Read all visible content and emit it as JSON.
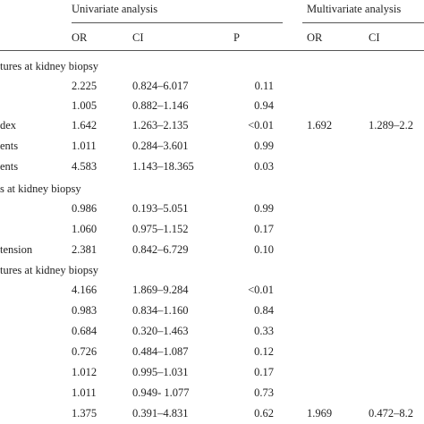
{
  "header": {
    "univariate": "Univariate analysis",
    "multivariate": "Multivariate analysis",
    "cols": {
      "or": "OR",
      "ci": "CI",
      "p": "P",
      "or2": "OR",
      "ci2": "CI"
    }
  },
  "sections": [
    "tures at kidney biopsy",
    "s at kidney biopsy",
    "tures at kidney biopsy"
  ],
  "rows": [
    {
      "label": "",
      "or": "2.225",
      "ci": "0.824–6.017",
      "p": "0.11",
      "mor": "",
      "mci": ""
    },
    {
      "label": "",
      "or": "1.005",
      "ci": "0.882–1.146",
      "p": "0.94",
      "mor": "",
      "mci": ""
    },
    {
      "label": "dex",
      "or": "1.642",
      "ci": "1.263–2.135",
      "p": "<0.01",
      "mor": "1.692",
      "mci": "1.289–2.2"
    },
    {
      "label": "ents",
      "or": "1.011",
      "ci": "0.284–3.601",
      "p": "0.99",
      "mor": "",
      "mci": ""
    },
    {
      "label": "ents",
      "or": "4.583",
      "ci": "1.143–18.365",
      "p": "0.03",
      "mor": "",
      "mci": ""
    },
    {
      "label": "",
      "or": "0.986",
      "ci": "0.193–5.051",
      "p": "0.99",
      "mor": "",
      "mci": ""
    },
    {
      "label": "",
      "or": "1.060",
      "ci": "0.975–1.152",
      "p": "0.17",
      "mor": "",
      "mci": ""
    },
    {
      "label": "tension",
      "or": "2.381",
      "ci": "0.842–6.729",
      "p": "0.10",
      "mor": "",
      "mci": ""
    },
    {
      "label": "",
      "or": "4.166",
      "ci": "1.869–9.284",
      "p": "<0.01",
      "mor": "",
      "mci": ""
    },
    {
      "label": "",
      "or": "0.983",
      "ci": "0.834–1.160",
      "p": "0.84",
      "mor": "",
      "mci": ""
    },
    {
      "label": "",
      "or": "0.684",
      "ci": "0.320–1.463",
      "p": "0.33",
      "mor": "",
      "mci": ""
    },
    {
      "label": "",
      "or": "0.726",
      "ci": "0.484–1.087",
      "p": "0.12",
      "mor": "",
      "mci": ""
    },
    {
      "label": "",
      "or": "1.012",
      "ci": "0.995–1.031",
      "p": "0.17",
      "mor": "",
      "mci": ""
    },
    {
      "label": "",
      "or": "1.011",
      "ci": "0.949- 1.077",
      "p": "0.73",
      "mor": "",
      "mci": ""
    },
    {
      "label": "",
      "or": "1.375",
      "ci": "0.391–4.831",
      "p": "0.62",
      "mor": "1.969",
      "mci": "0.472–8.2"
    }
  ]
}
